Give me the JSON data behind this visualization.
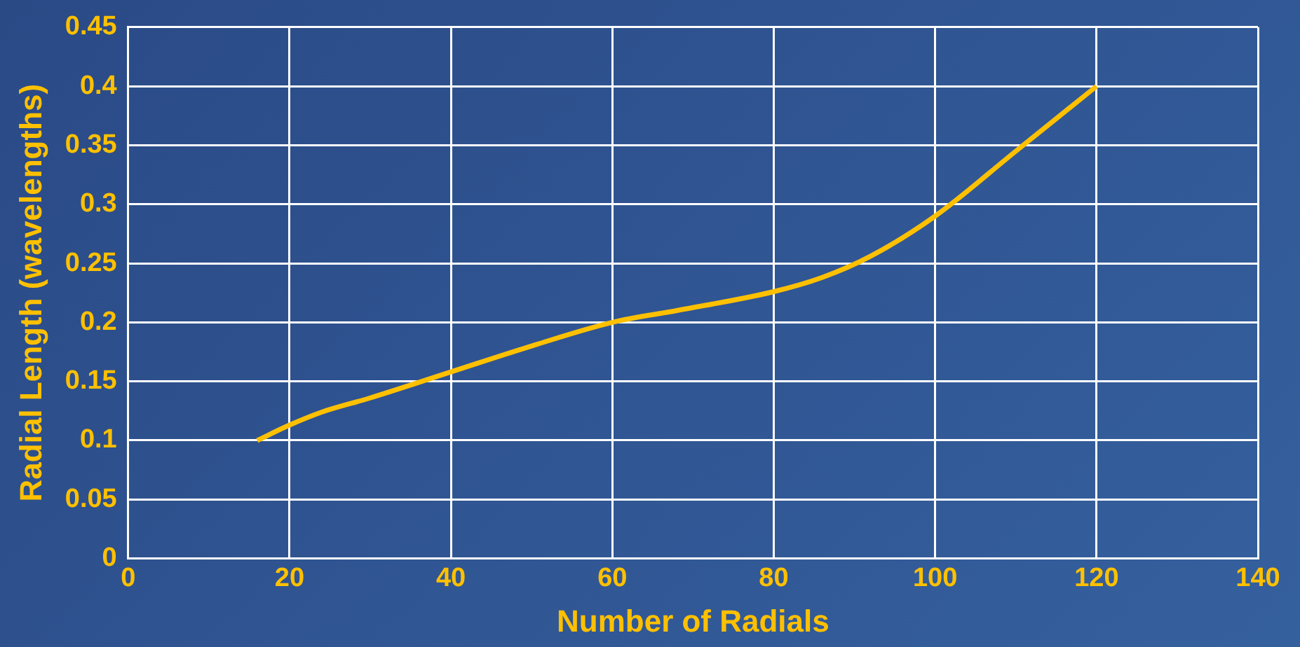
{
  "chart_data": {
    "type": "line",
    "xlabel": "Number of Radials",
    "ylabel": "Radial Length (wavelengths)",
    "x": [
      16,
      20,
      24,
      30,
      40,
      50,
      60,
      68,
      80,
      86,
      92,
      100,
      110,
      120
    ],
    "series": [
      {
        "color": "#ffc000",
        "values": [
          0.1,
          0.113,
          0.124,
          0.136,
          0.158,
          0.18,
          0.2,
          0.21,
          0.226,
          0.238,
          0.256,
          0.29,
          0.345,
          0.4
        ]
      }
    ],
    "xlim": [
      0,
      140
    ],
    "xticks": [
      0,
      20,
      40,
      60,
      80,
      100,
      120,
      140
    ],
    "ylim": [
      0,
      0.45
    ],
    "yticks": [
      0,
      0.05,
      0.1,
      0.15,
      0.2,
      0.25,
      0.3,
      0.35,
      0.4,
      0.45
    ],
    "grid": true,
    "legend": false,
    "marker": "none",
    "line_style": "solid"
  }
}
